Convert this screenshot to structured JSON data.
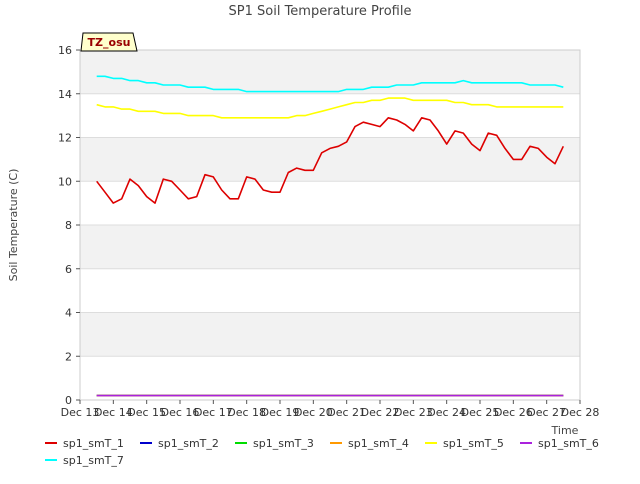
{
  "chart_data": {
    "type": "line",
    "title": "SP1 Soil Temperature Profile",
    "xlabel": "Time",
    "ylabel": "Soil Temperature (C)",
    "annotation": "TZ_osu",
    "xlim": [
      "2023-12-13",
      "2023-12-28"
    ],
    "ylim": [
      0,
      16
    ],
    "x_ticks": [
      "Dec 13",
      "Dec 14",
      "Dec 15",
      "Dec 16",
      "Dec 17",
      "Dec 18",
      "Dec 19",
      "Dec 20",
      "Dec 21",
      "Dec 22",
      "Dec 23",
      "Dec 24",
      "Dec 25",
      "Dec 26",
      "Dec 27",
      "Dec 28"
    ],
    "y_ticks": [
      0,
      2,
      4,
      6,
      8,
      10,
      12,
      14,
      16
    ],
    "grid": true,
    "legend_position": "bottom",
    "x": [
      "2023-12-13 12:00",
      "2023-12-13 18:00",
      "2023-12-14 00:00",
      "2023-12-14 06:00",
      "2023-12-14 12:00",
      "2023-12-14 18:00",
      "2023-12-15 00:00",
      "2023-12-15 06:00",
      "2023-12-15 12:00",
      "2023-12-15 18:00",
      "2023-12-16 00:00",
      "2023-12-16 06:00",
      "2023-12-16 12:00",
      "2023-12-16 18:00",
      "2023-12-17 00:00",
      "2023-12-17 06:00",
      "2023-12-17 12:00",
      "2023-12-17 18:00",
      "2023-12-18 00:00",
      "2023-12-18 06:00",
      "2023-12-18 12:00",
      "2023-12-18 18:00",
      "2023-12-19 00:00",
      "2023-12-19 06:00",
      "2023-12-19 12:00",
      "2023-12-19 18:00",
      "2023-12-20 00:00",
      "2023-12-20 06:00",
      "2023-12-20 12:00",
      "2023-12-20 18:00",
      "2023-12-21 00:00",
      "2023-12-21 06:00",
      "2023-12-21 12:00",
      "2023-12-21 18:00",
      "2023-12-22 00:00",
      "2023-12-22 06:00",
      "2023-12-22 12:00",
      "2023-12-22 18:00",
      "2023-12-23 00:00",
      "2023-12-23 06:00",
      "2023-12-23 12:00",
      "2023-12-23 18:00",
      "2023-12-24 00:00",
      "2023-12-24 06:00",
      "2023-12-24 12:00",
      "2023-12-24 18:00",
      "2023-12-25 00:00",
      "2023-12-25 06:00",
      "2023-12-25 12:00",
      "2023-12-25 18:00",
      "2023-12-26 00:00",
      "2023-12-26 06:00",
      "2023-12-26 12:00",
      "2023-12-26 18:00",
      "2023-12-27 00:00",
      "2023-12-27 06:00",
      "2023-12-27 12:00"
    ],
    "series": [
      {
        "name": "sp1_smT_1",
        "color": "#dd0000",
        "values": [
          10.0,
          9.5,
          9.0,
          9.2,
          10.1,
          9.8,
          9.3,
          9.0,
          10.1,
          10.0,
          9.6,
          9.2,
          9.3,
          10.3,
          10.2,
          9.6,
          9.2,
          9.2,
          10.2,
          10.1,
          9.6,
          9.5,
          9.5,
          10.4,
          10.6,
          10.5,
          10.5,
          11.3,
          11.5,
          11.6,
          11.8,
          12.5,
          12.7,
          12.6,
          12.5,
          12.9,
          12.8,
          12.6,
          12.3,
          12.9,
          12.8,
          12.3,
          11.7,
          12.3,
          12.2,
          11.7,
          11.4,
          12.2,
          12.1,
          11.5,
          11.0,
          11.0,
          11.6,
          11.5,
          11.1,
          10.8,
          11.6
        ]
      },
      {
        "name": "sp1_smT_2",
        "color": "#0000cc",
        "values": [
          0.2,
          0.2,
          0.2,
          0.2,
          0.2,
          0.2,
          0.2,
          0.2,
          0.2,
          0.2,
          0.2,
          0.2,
          0.2,
          0.2,
          0.2,
          0.2,
          0.2,
          0.2,
          0.2,
          0.2,
          0.2,
          0.2,
          0.2,
          0.2,
          0.2,
          0.2,
          0.2,
          0.2,
          0.2,
          0.2,
          0.2,
          0.2,
          0.2,
          0.2,
          0.2,
          0.2,
          0.2,
          0.2,
          0.2,
          0.2,
          0.2,
          0.2,
          0.2,
          0.2,
          0.2,
          0.2,
          0.2,
          0.2,
          0.2,
          0.2,
          0.2,
          0.2,
          0.2,
          0.2,
          0.2,
          0.2,
          0.2
        ]
      },
      {
        "name": "sp1_smT_3",
        "color": "#00dd00",
        "values": [
          0.2,
          0.2,
          0.2,
          0.2,
          0.2,
          0.2,
          0.2,
          0.2,
          0.2,
          0.2,
          0.2,
          0.2,
          0.2,
          0.2,
          0.2,
          0.2,
          0.2,
          0.2,
          0.2,
          0.2,
          0.2,
          0.2,
          0.2,
          0.2,
          0.2,
          0.2,
          0.2,
          0.2,
          0.2,
          0.2,
          0.2,
          0.2,
          0.2,
          0.2,
          0.2,
          0.2,
          0.2,
          0.2,
          0.2,
          0.2,
          0.2,
          0.2,
          0.2,
          0.2,
          0.2,
          0.2,
          0.2,
          0.2,
          0.2,
          0.2,
          0.2,
          0.2,
          0.2,
          0.2,
          0.2,
          0.2,
          0.2
        ]
      },
      {
        "name": "sp1_smT_4",
        "color": "#ff9900",
        "values": [
          0.2,
          0.2,
          0.2,
          0.2,
          0.2,
          0.2,
          0.2,
          0.2,
          0.2,
          0.2,
          0.2,
          0.2,
          0.2,
          0.2,
          0.2,
          0.2,
          0.2,
          0.2,
          0.2,
          0.2,
          0.2,
          0.2,
          0.2,
          0.2,
          0.2,
          0.2,
          0.2,
          0.2,
          0.2,
          0.2,
          0.2,
          0.2,
          0.2,
          0.2,
          0.2,
          0.2,
          0.2,
          0.2,
          0.2,
          0.2,
          0.2,
          0.2,
          0.2,
          0.2,
          0.2,
          0.2,
          0.2,
          0.2,
          0.2,
          0.2,
          0.2,
          0.2,
          0.2,
          0.2,
          0.2,
          0.2,
          0.2
        ]
      },
      {
        "name": "sp1_smT_5",
        "color": "#ffff00",
        "values": [
          13.5,
          13.4,
          13.4,
          13.3,
          13.3,
          13.2,
          13.2,
          13.2,
          13.1,
          13.1,
          13.1,
          13.0,
          13.0,
          13.0,
          13.0,
          12.9,
          12.9,
          12.9,
          12.9,
          12.9,
          12.9,
          12.9,
          12.9,
          12.9,
          13.0,
          13.0,
          13.1,
          13.2,
          13.3,
          13.4,
          13.5,
          13.6,
          13.6,
          13.7,
          13.7,
          13.8,
          13.8,
          13.8,
          13.7,
          13.7,
          13.7,
          13.7,
          13.7,
          13.6,
          13.6,
          13.5,
          13.5,
          13.5,
          13.4,
          13.4,
          13.4,
          13.4,
          13.4,
          13.4,
          13.4,
          13.4,
          13.4
        ]
      },
      {
        "name": "sp1_smT_6",
        "color": "#aa22dd",
        "values": [
          0.2,
          0.2,
          0.2,
          0.2,
          0.2,
          0.2,
          0.2,
          0.2,
          0.2,
          0.2,
          0.2,
          0.2,
          0.2,
          0.2,
          0.2,
          0.2,
          0.2,
          0.2,
          0.2,
          0.2,
          0.2,
          0.2,
          0.2,
          0.2,
          0.2,
          0.2,
          0.2,
          0.2,
          0.2,
          0.2,
          0.2,
          0.2,
          0.2,
          0.2,
          0.2,
          0.2,
          0.2,
          0.2,
          0.2,
          0.2,
          0.2,
          0.2,
          0.2,
          0.2,
          0.2,
          0.2,
          0.2,
          0.2,
          0.2,
          0.2,
          0.2,
          0.2,
          0.2,
          0.2,
          0.2,
          0.2,
          0.2
        ]
      },
      {
        "name": "sp1_smT_7",
        "color": "#00ffff",
        "values": [
          14.8,
          14.8,
          14.7,
          14.7,
          14.6,
          14.6,
          14.5,
          14.5,
          14.4,
          14.4,
          14.4,
          14.3,
          14.3,
          14.3,
          14.2,
          14.2,
          14.2,
          14.2,
          14.1,
          14.1,
          14.1,
          14.1,
          14.1,
          14.1,
          14.1,
          14.1,
          14.1,
          14.1,
          14.1,
          14.1,
          14.2,
          14.2,
          14.2,
          14.3,
          14.3,
          14.3,
          14.4,
          14.4,
          14.4,
          14.5,
          14.5,
          14.5,
          14.5,
          14.5,
          14.6,
          14.5,
          14.5,
          14.5,
          14.5,
          14.5,
          14.5,
          14.5,
          14.4,
          14.4,
          14.4,
          14.4,
          14.3
        ]
      }
    ]
  }
}
